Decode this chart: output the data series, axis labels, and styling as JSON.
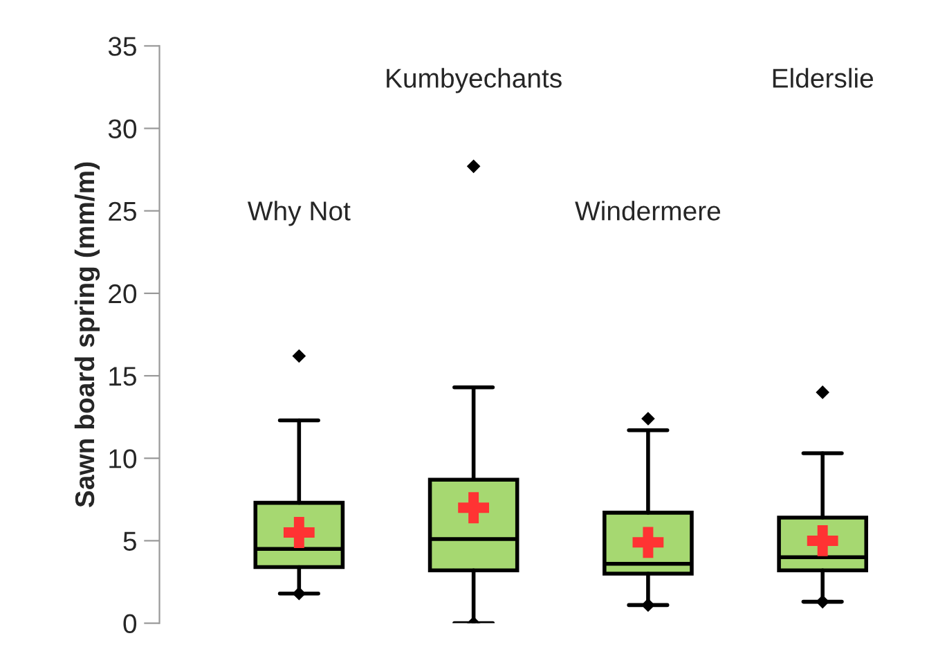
{
  "chart_data": {
    "type": "box",
    "ylabel": "Sawn board spring (mm/m)",
    "categories": [
      "Why Not",
      "Kumbyechants",
      "Windermere",
      "Elderslie"
    ],
    "boxes": [
      {
        "low": 1.8,
        "q1": 3.4,
        "median": 4.5,
        "q3": 7.3,
        "high": 12.3,
        "outliers": [
          16.2,
          1.8
        ]
      },
      {
        "low": 0,
        "q1": 3.2,
        "median": 5.1,
        "q3": 8.7,
        "high": 14.3,
        "outliers": [
          27.7,
          0
        ]
      },
      {
        "low": 1.1,
        "q1": 3.0,
        "median": 3.6,
        "q3": 6.7,
        "high": 11.7,
        "outliers": [
          12.4,
          1.1
        ]
      },
      {
        "low": 1.3,
        "q1": 3.2,
        "median": 4.0,
        "q3": 6.4,
        "high": 10.3,
        "outliers": [
          14.0,
          1.3
        ]
      }
    ],
    "color": "#a6d871",
    "series": [
      {
        "type": "scatter",
        "x": [
          "Why Not",
          "Kumbyechants",
          "Windermere",
          "Elderslie"
        ],
        "values": [
          5.5,
          7.0,
          4.9,
          5.0
        ],
        "color": "#ff3333",
        "marker": "cross"
      }
    ],
    "ylim": [
      0,
      35
    ],
    "yticks": [
      0,
      5,
      10,
      15,
      20,
      25,
      30,
      35
    ],
    "grid": false
  }
}
